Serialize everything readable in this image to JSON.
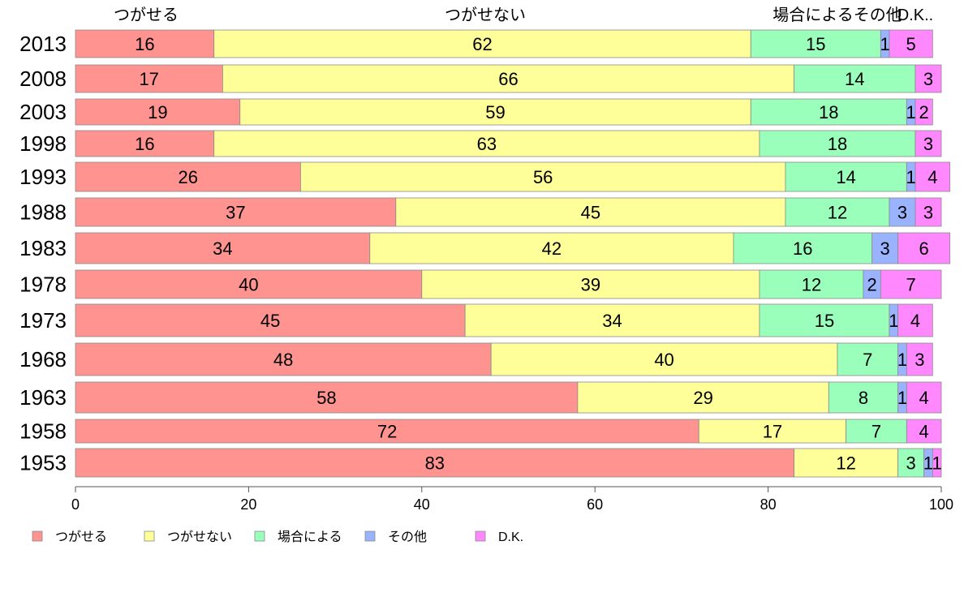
{
  "chart_data": {
    "type": "bar",
    "orientation": "horizontal",
    "stacked": true,
    "categories": [
      "2013",
      "2008",
      "2003",
      "1998",
      "1993",
      "1988",
      "1983",
      "1978",
      "1973",
      "1968",
      "1963",
      "1958",
      "1953"
    ],
    "series": [
      {
        "name": "つがせる",
        "color": "#ff9390",
        "values": [
          16,
          17,
          19,
          16,
          26,
          37,
          34,
          40,
          45,
          48,
          58,
          72,
          83
        ]
      },
      {
        "name": "つがせない",
        "color": "#ffff99",
        "values": [
          62,
          66,
          59,
          63,
          56,
          45,
          42,
          39,
          34,
          40,
          29,
          17,
          12
        ]
      },
      {
        "name": "場合による",
        "color": "#99ffbb",
        "values": [
          15,
          14,
          18,
          18,
          14,
          12,
          16,
          12,
          15,
          7,
          8,
          7,
          3
        ]
      },
      {
        "name": "その他",
        "color": "#99b3ff",
        "values": [
          1,
          null,
          1,
          null,
          1,
          3,
          3,
          2,
          1,
          1,
          1,
          null,
          1
        ]
      },
      {
        "name": "D.K.",
        "color": "#ff88ff",
        "values": [
          5,
          3,
          2,
          3,
          4,
          3,
          6,
          7,
          4,
          3,
          4,
          4,
          1
        ]
      }
    ],
    "column_headers": [
      "つがせる",
      "つがせない",
      "場合によるその他",
      "D.K.."
    ],
    "xlim": [
      0,
      100
    ],
    "xticks": [
      0,
      20,
      40,
      60,
      80,
      100
    ],
    "legend_position": "bottom-left",
    "grid": false
  }
}
